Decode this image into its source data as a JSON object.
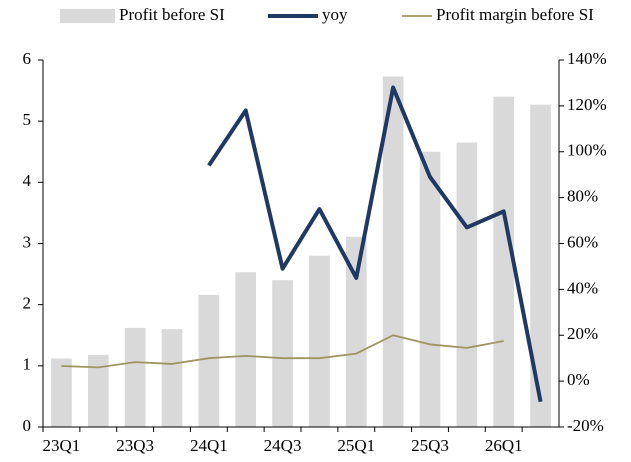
{
  "chart_data": {
    "type": "bar",
    "categories": [
      "23Q1",
      null,
      "23Q3",
      null,
      "24Q1",
      null,
      "24Q3",
      null,
      "25Q1",
      null,
      "25Q3",
      null,
      "26Q1",
      null
    ],
    "series": [
      {
        "name": "Profit before SI",
        "type": "bar",
        "color": "#d9d9d9",
        "values": [
          1.12,
          1.18,
          1.62,
          1.6,
          2.16,
          2.53,
          2.4,
          2.8,
          3.11,
          5.73,
          4.5,
          4.65,
          5.4,
          5.27
        ]
      },
      {
        "name": "yoy",
        "type": "line",
        "axis": "y2",
        "color": "#1f3864",
        "values": [
          null,
          null,
          null,
          null,
          94,
          118,
          49,
          75,
          45,
          128,
          89,
          67,
          74,
          -9
        ]
      },
      {
        "name": "Profit margin before SI",
        "type": "line",
        "axis": "y2",
        "color": "#a09460",
        "values": [
          6.6,
          6,
          8.3,
          7.5,
          10,
          11,
          10,
          10,
          12,
          20,
          16,
          14.5,
          17.5,
          null
        ]
      }
    ],
    "ylim": [
      0,
      6
    ],
    "yticks": [
      0,
      1,
      2,
      3,
      4,
      5,
      6
    ],
    "y2lim": [
      -20,
      140
    ],
    "y2ticks": [
      {
        "value": -20,
        "label": "-20%"
      },
      {
        "value": 0,
        "label": "0%"
      },
      {
        "value": 20,
        "label": "20%"
      },
      {
        "value": 40,
        "label": "40%"
      },
      {
        "value": 60,
        "label": "60%"
      },
      {
        "value": 80,
        "label": "80%"
      },
      {
        "value": 100,
        "label": "100%"
      },
      {
        "value": 120,
        "label": "120%"
      },
      {
        "value": 140,
        "label": "140%"
      }
    ],
    "legend": "top"
  }
}
